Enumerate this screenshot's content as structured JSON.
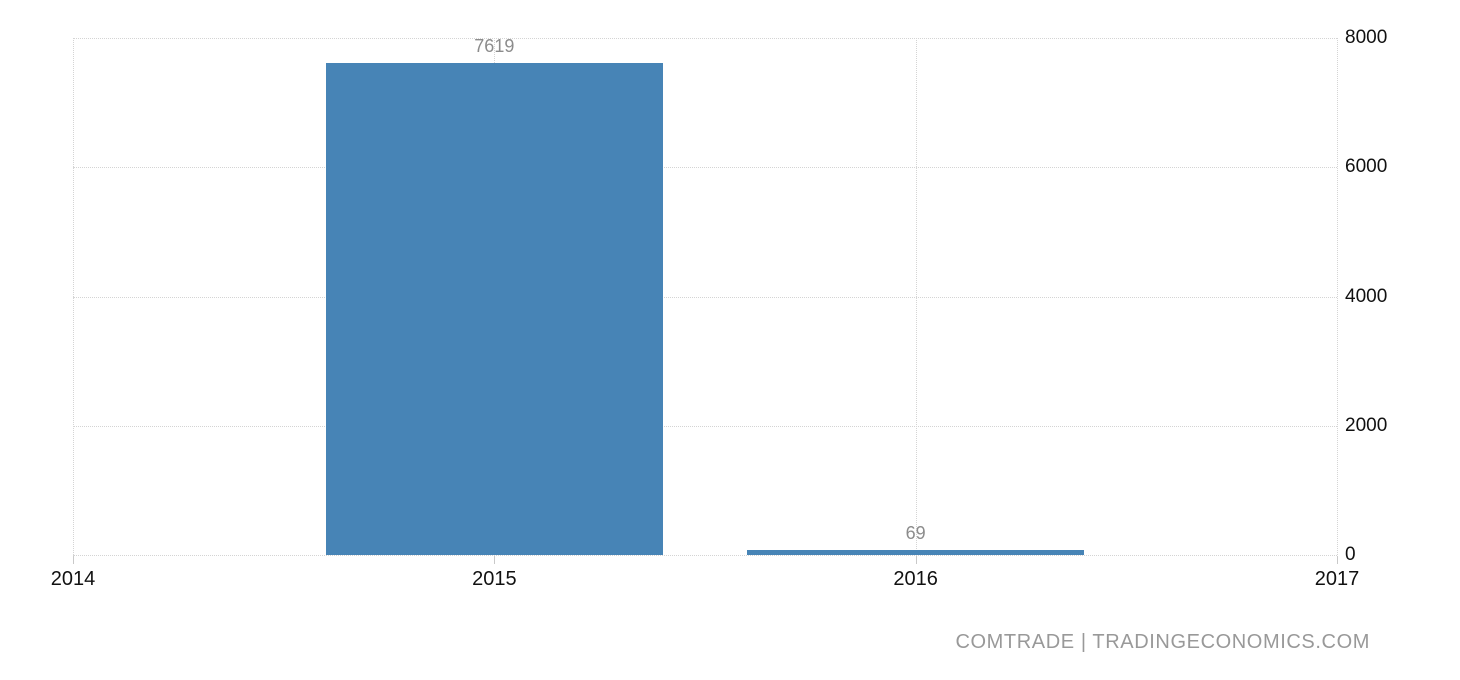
{
  "chart_data": {
    "type": "bar",
    "title": "",
    "xlabel": "",
    "ylabel": "",
    "categories": [
      "2014",
      "2015",
      "2016",
      "2017"
    ],
    "points": [
      {
        "category": "2015",
        "value": 7619,
        "label": "7619"
      },
      {
        "category": "2016",
        "value": 69,
        "label": "69"
      }
    ],
    "ylim": [
      0,
      8000
    ],
    "y_ticks": [
      0,
      2000,
      4000,
      6000,
      8000
    ],
    "y_tick_labels": [
      "0",
      "2000",
      "4000",
      "6000",
      "8000"
    ],
    "y_axis_side": "right",
    "grid": "dotted",
    "legend": "none",
    "colors": {
      "bar": "#4784b6",
      "value_label": "#8c8c8c",
      "axis_label": "#111111",
      "gridline": "#d4d4d4",
      "tick": "#c9c9c9",
      "background": "#ffffff"
    }
  },
  "footer": {
    "attribution": "COMTRADE | TRADINGECONOMICS.COM",
    "color": "#999999"
  }
}
